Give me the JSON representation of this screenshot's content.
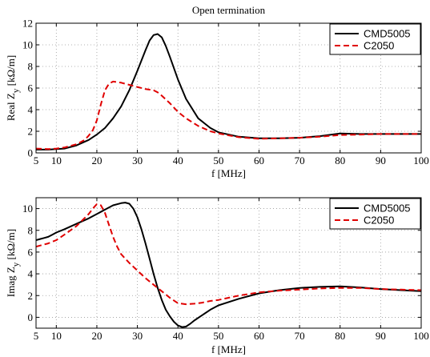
{
  "chart_data": [
    {
      "type": "line",
      "title": "Open termination",
      "xlabel": "f [MHz]",
      "ylabel_main": "Real Z",
      "ylabel_sub": "y",
      "ylabel_unit": " [kΩ/m]",
      "xlim": [
        5,
        100
      ],
      "ylim": [
        0,
        12
      ],
      "xticks": [
        5,
        10,
        20,
        30,
        40,
        50,
        60,
        70,
        80,
        90,
        100
      ],
      "yticks": [
        0,
        2,
        4,
        6,
        8,
        10,
        12
      ],
      "grid": true,
      "legend_position": "top-right",
      "series": [
        {
          "name": "CMD5005",
          "color": "#000000",
          "style": "solid",
          "x": [
            5,
            8,
            10,
            12,
            15,
            18,
            20,
            22,
            24,
            26,
            28,
            30,
            32,
            33,
            34,
            35,
            36,
            37,
            38,
            40,
            42,
            45,
            48,
            50,
            55,
            60,
            65,
            70,
            75,
            80,
            85,
            90,
            95,
            100
          ],
          "y": [
            0.3,
            0.3,
            0.35,
            0.4,
            0.7,
            1.2,
            1.7,
            2.3,
            3.2,
            4.3,
            5.8,
            7.6,
            9.5,
            10.4,
            10.9,
            11.0,
            10.7,
            9.9,
            8.9,
            6.8,
            5.0,
            3.2,
            2.3,
            1.9,
            1.5,
            1.35,
            1.35,
            1.4,
            1.55,
            1.8,
            1.75,
            1.75,
            1.75,
            1.75
          ]
        },
        {
          "name": "C2050",
          "color": "#e00000",
          "style": "dashed",
          "x": [
            5,
            8,
            10,
            12,
            15,
            17,
            18,
            19,
            20,
            21,
            22,
            23,
            24,
            26,
            28,
            30,
            32,
            34,
            35,
            36,
            38,
            40,
            42,
            45,
            48,
            50,
            55,
            60,
            65,
            70,
            75,
            80,
            85,
            90,
            95,
            100
          ],
          "y": [
            0.4,
            0.35,
            0.4,
            0.5,
            0.8,
            1.2,
            1.6,
            2.1,
            3.0,
            4.5,
            5.8,
            6.4,
            6.6,
            6.5,
            6.3,
            6.1,
            5.9,
            5.8,
            5.6,
            5.3,
            4.6,
            3.8,
            3.2,
            2.5,
            2.0,
            1.8,
            1.45,
            1.3,
            1.35,
            1.4,
            1.5,
            1.65,
            1.7,
            1.75,
            1.75,
            1.75
          ]
        }
      ]
    },
    {
      "type": "line",
      "title": "",
      "xlabel": "f [MHz]",
      "ylabel_main": "Imag Z",
      "ylabel_sub": "y",
      "ylabel_unit": " [kΩ/m]",
      "xlim": [
        5,
        100
      ],
      "ylim": [
        -1,
        11
      ],
      "xticks": [
        5,
        10,
        20,
        30,
        40,
        50,
        60,
        70,
        80,
        90,
        100
      ],
      "yticks": [
        0,
        2,
        4,
        6,
        8,
        10
      ],
      "grid": true,
      "legend_position": "top-right",
      "series": [
        {
          "name": "CMD5005",
          "color": "#000000",
          "style": "solid",
          "x": [
            5,
            6,
            7,
            8,
            9,
            10,
            12,
            15,
            18,
            20,
            22,
            24,
            26,
            27,
            28,
            29,
            30,
            31,
            32,
            33,
            34,
            35,
            36,
            37,
            38,
            39,
            40,
            41,
            42,
            43,
            44,
            46,
            48,
            50,
            55,
            60,
            65,
            70,
            75,
            80,
            85,
            90,
            95,
            100
          ],
          "y": [
            7.1,
            7.2,
            7.3,
            7.4,
            7.6,
            7.8,
            8.1,
            8.6,
            9.1,
            9.5,
            9.9,
            10.3,
            10.5,
            10.55,
            10.45,
            10.0,
            9.2,
            8.1,
            6.8,
            5.4,
            4.0,
            2.7,
            1.6,
            0.7,
            0.1,
            -0.4,
            -0.75,
            -0.9,
            -0.85,
            -0.6,
            -0.3,
            0.2,
            0.7,
            1.1,
            1.7,
            2.2,
            2.5,
            2.7,
            2.8,
            2.85,
            2.75,
            2.6,
            2.5,
            2.4
          ]
        },
        {
          "name": "C2050",
          "color": "#e00000",
          "style": "dashed",
          "x": [
            5,
            8,
            10,
            12,
            15,
            18,
            19,
            20,
            21,
            22,
            23,
            24,
            25,
            26,
            28,
            30,
            32,
            34,
            36,
            38,
            40,
            42,
            44,
            46,
            48,
            50,
            55,
            60,
            65,
            70,
            75,
            80,
            85,
            90,
            95,
            100
          ],
          "y": [
            6.5,
            6.8,
            7.1,
            7.6,
            8.4,
            9.5,
            10.0,
            10.4,
            10.3,
            9.6,
            8.5,
            7.4,
            6.5,
            5.8,
            5.0,
            4.3,
            3.6,
            3.0,
            2.4,
            1.8,
            1.3,
            1.2,
            1.25,
            1.35,
            1.5,
            1.6,
            2.0,
            2.3,
            2.45,
            2.55,
            2.65,
            2.7,
            2.7,
            2.6,
            2.55,
            2.5
          ]
        }
      ]
    }
  ]
}
